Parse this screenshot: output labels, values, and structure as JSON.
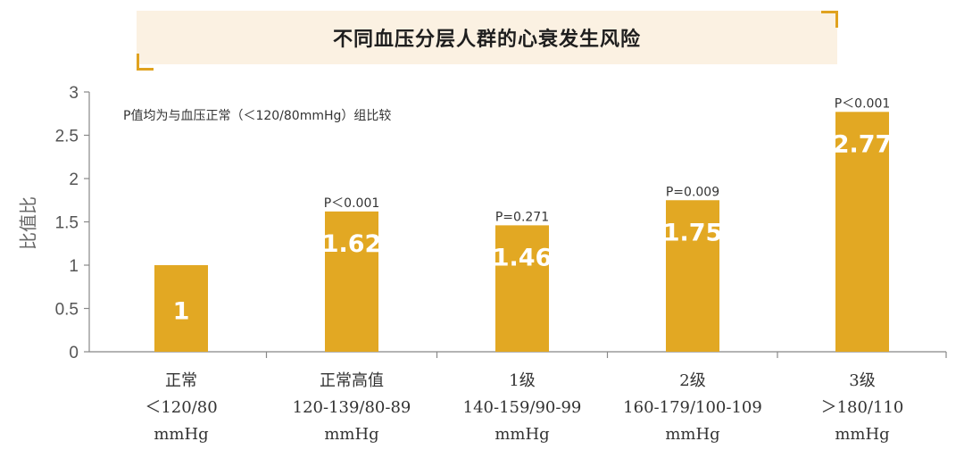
{
  "header": {
    "title": "不同血压分层人群的心衰发生风险"
  },
  "note": "P值均为与血压正常（＜120/80mmHg）组比较",
  "chart_data": {
    "type": "bar",
    "title": "不同血压分层人群的心衰发生风险",
    "xlabel": "",
    "ylabel": "比值比",
    "ylim": [
      0,
      3
    ],
    "yticks": [
      "0",
      "0.5",
      "1",
      "1.5",
      "2",
      "2.5",
      "3"
    ],
    "grid": false,
    "bar_color": "#e2a823",
    "categories": [
      {
        "lines": [
          "正常",
          "＜120/80",
          "mmHg"
        ]
      },
      {
        "lines": [
          "正常高值",
          "120-139/80-89",
          "mmHg"
        ]
      },
      {
        "lines": [
          "1级",
          "140-159/90-99",
          "mmHg"
        ]
      },
      {
        "lines": [
          "2级",
          "160-179/100-109",
          "mmHg"
        ]
      },
      {
        "lines": [
          "3级",
          "＞180/110",
          "mmHg"
        ]
      }
    ],
    "values": [
      1,
      1.62,
      1.46,
      1.75,
      2.77
    ],
    "data_labels": [
      "1",
      "1.62",
      "1.46",
      "1.75",
      "2.77"
    ],
    "p_values": [
      "",
      "P＜0.001",
      "P=0.271",
      "P=0.009",
      "P＜0.001"
    ]
  }
}
